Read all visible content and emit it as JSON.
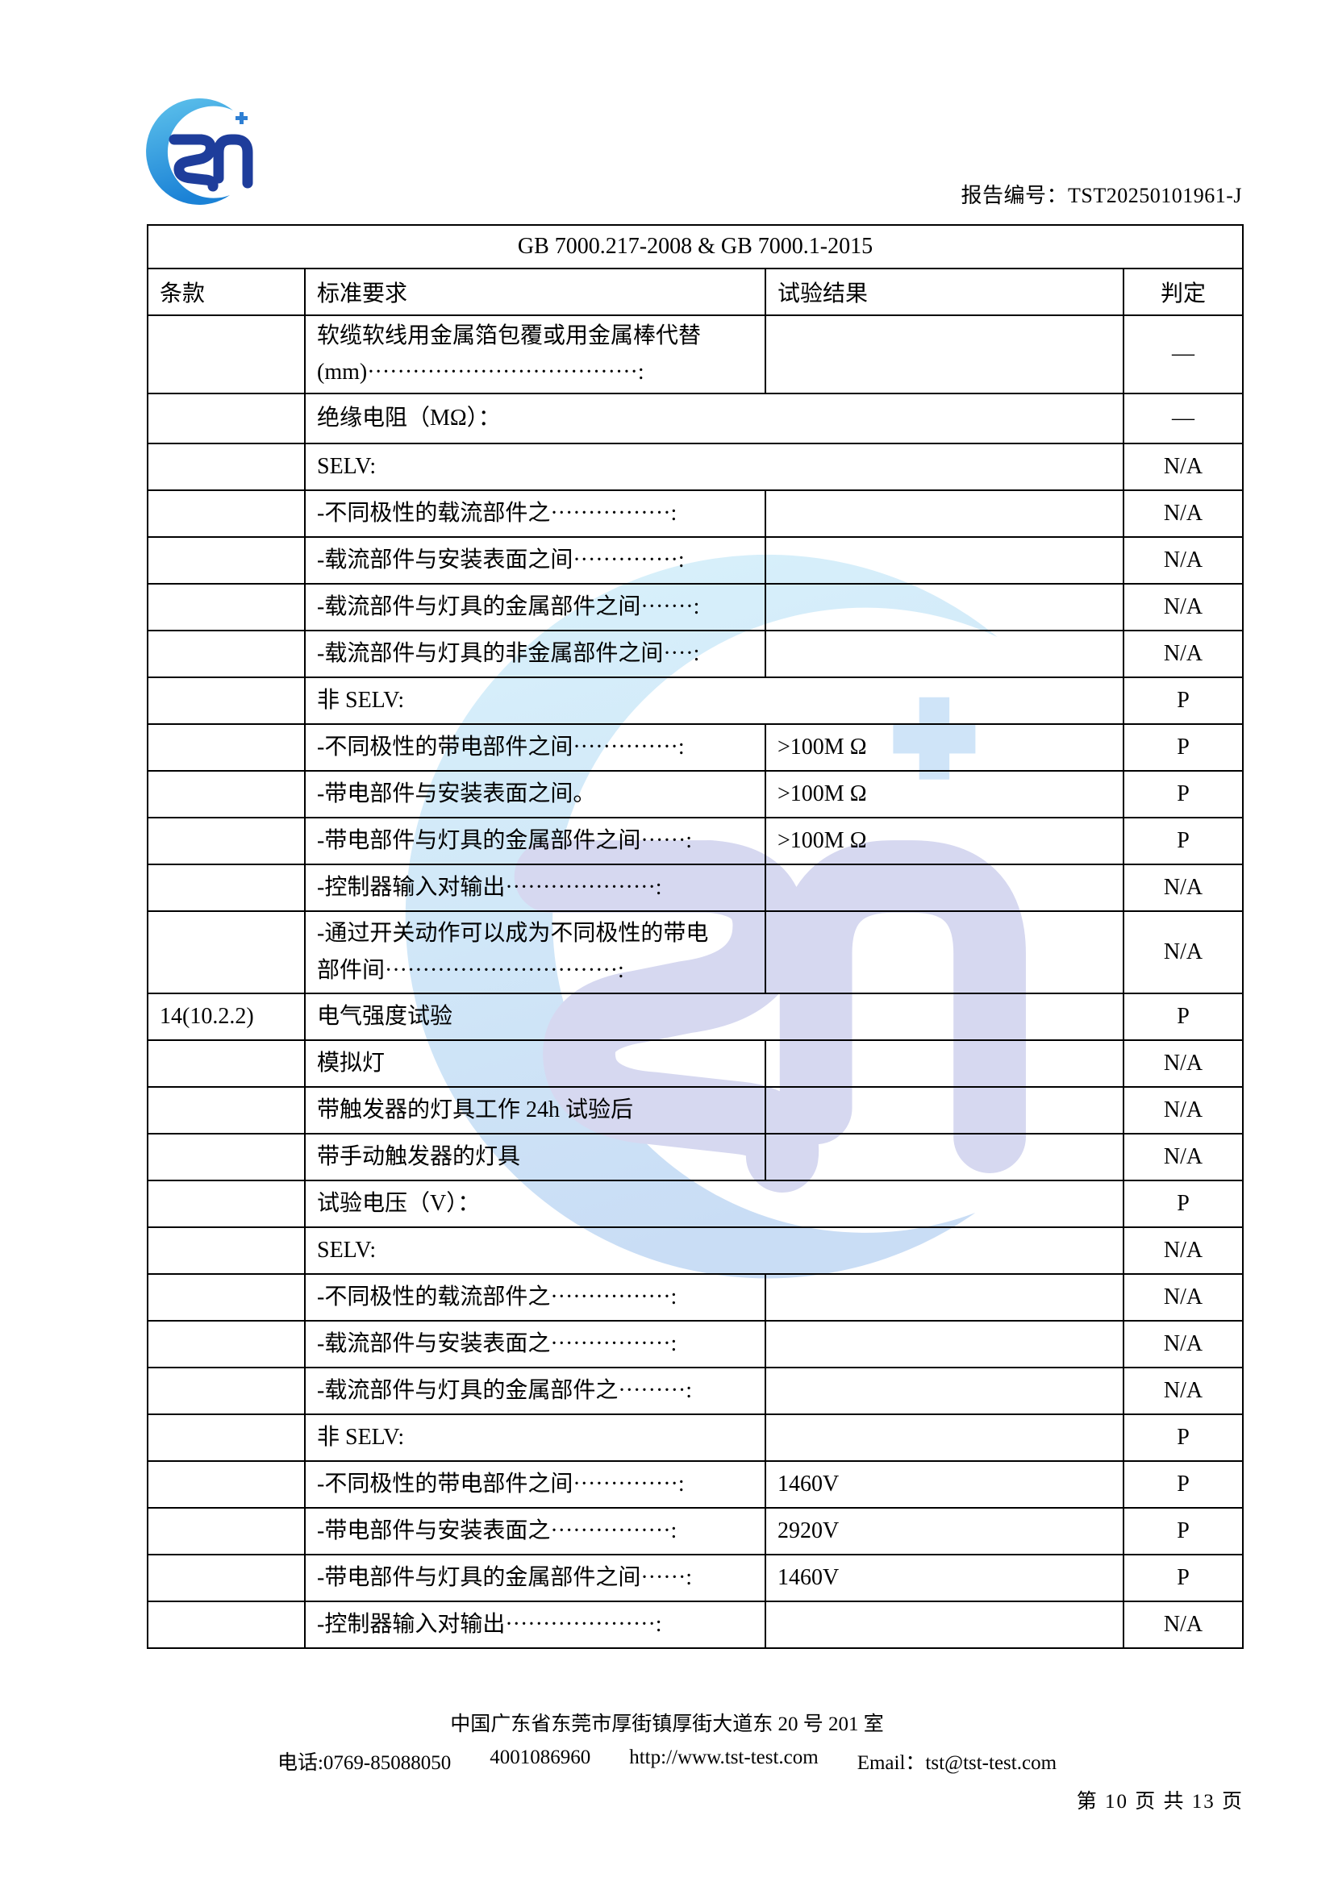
{
  "header": {
    "report_label": "报告编号：",
    "report_number": "TST20250101961-J"
  },
  "logo": {
    "brand": "TST",
    "plus_glyph": "+"
  },
  "table": {
    "title": "GB 7000.217-2008 & GB 7000.1-2015",
    "columns": [
      "条款",
      "标准要求",
      "试验结果",
      "判定"
    ],
    "rows": [
      {
        "clause": "",
        "req": "软缆软线用金属箔包覆或用金属棒代替\n(mm)····································:",
        "result": "",
        "verdict": "—",
        "merged": false,
        "h": 96
      },
      {
        "clause": "",
        "req": "绝缘电阻（MΩ）：",
        "result": "",
        "verdict": "—",
        "merged": true,
        "h": 62
      },
      {
        "clause": "",
        "req": "SELV:",
        "result": "",
        "verdict": "N/A",
        "merged": true
      },
      {
        "clause": "",
        "req": "-不同极性的载流部件之················:",
        "result": "",
        "verdict": "N/A",
        "merged": false
      },
      {
        "clause": "",
        "req": "-载流部件与安装表面之间··············:",
        "result": "",
        "verdict": "N/A",
        "merged": false
      },
      {
        "clause": "",
        "req": "-载流部件与灯具的金属部件之间·······:",
        "result": "",
        "verdict": "N/A",
        "merged": false
      },
      {
        "clause": "",
        "req": "-载流部件与灯具的非金属部件之间····:",
        "result": "",
        "verdict": "N/A",
        "merged": false
      },
      {
        "clause": "",
        "req": "非 SELV:",
        "result": "",
        "verdict": "P",
        "merged": true
      },
      {
        "clause": "",
        "req": "-不同极性的带电部件之间··············:",
        "result": ">100M Ω",
        "verdict": "P",
        "merged": false
      },
      {
        "clause": "",
        "req": "-带电部件与安装表面之间。",
        "result": ">100M Ω",
        "verdict": "P",
        "merged": false
      },
      {
        "clause": "",
        "req": "-带电部件与灯具的金属部件之间······:",
        "result": ">100M Ω",
        "verdict": "P",
        "merged": false
      },
      {
        "clause": "",
        "req": "-控制器输入对输出····················:",
        "result": "",
        "verdict": "N/A",
        "merged": false
      },
      {
        "clause": "",
        "req": "-通过开关动作可以成为不同极性的带电\n部件间·······························:",
        "result": "",
        "verdict": "N/A",
        "merged": false,
        "h": 102
      },
      {
        "clause": "14(10.2.2)",
        "req": "电气强度试验",
        "result": "",
        "verdict": "P",
        "merged": true
      },
      {
        "clause": "",
        "req": "模拟灯",
        "result": "",
        "verdict": "N/A",
        "merged": false
      },
      {
        "clause": "",
        "req": "带触发器的灯具工作 24h 试验后",
        "result": "",
        "verdict": "N/A",
        "merged": false
      },
      {
        "clause": "",
        "req": "带手动触发器的灯具",
        "result": "",
        "verdict": "N/A",
        "merged": false
      },
      {
        "clause": "",
        "req": "试验电压（V）：",
        "result": "",
        "verdict": "P",
        "merged": true
      },
      {
        "clause": "",
        "req": "SELV:",
        "result": "",
        "verdict": "N/A",
        "merged": true
      },
      {
        "clause": "",
        "req": "-不同极性的载流部件之················:",
        "result": "",
        "verdict": "N/A",
        "merged": false
      },
      {
        "clause": "",
        "req": "-载流部件与安装表面之················:",
        "result": "",
        "verdict": "N/A",
        "merged": false
      },
      {
        "clause": "",
        "req": "-载流部件与灯具的金属部件之·········:",
        "result": "",
        "verdict": "N/A",
        "merged": false
      },
      {
        "clause": "",
        "req": "非 SELV:",
        "result": "",
        "verdict": "P",
        "merged": false
      },
      {
        "clause": "",
        "req": "-不同极性的带电部件之间··············:",
        "result": "1460V",
        "verdict": "P",
        "merged": false
      },
      {
        "clause": "",
        "req": "-带电部件与安装表面之················:",
        "result": "2920V",
        "verdict": "P",
        "merged": false
      },
      {
        "clause": "",
        "req": "-带电部件与灯具的金属部件之间······:",
        "result": "1460V",
        "verdict": "P",
        "merged": false
      },
      {
        "clause": "",
        "req": "-控制器输入对输出····················:",
        "result": "",
        "verdict": "N/A",
        "merged": false
      }
    ]
  },
  "footer": {
    "address": "中国广东省东莞市厚街镇厚街大道东 20 号 201 室",
    "phone": "电话:0769-85088050",
    "hotline": "4001086960",
    "website": "http://www.tst-test.com",
    "email": "Email：tst@tst-test.com",
    "page_info": "第 10 页 共 13 页"
  },
  "colors": {
    "logo_crescent_top": "#5fc3ec",
    "logo_crescent_bottom": "#1b82d6",
    "logo_letters": "#1e3d9b",
    "logo_plus": "#2e7fd3",
    "watermark_crescent_top": "#d9f2fb",
    "watermark_crescent_bottom": "#c9ddf5",
    "watermark_letters": "#d6d8f0",
    "watermark_plus": "#cfe4f8"
  }
}
